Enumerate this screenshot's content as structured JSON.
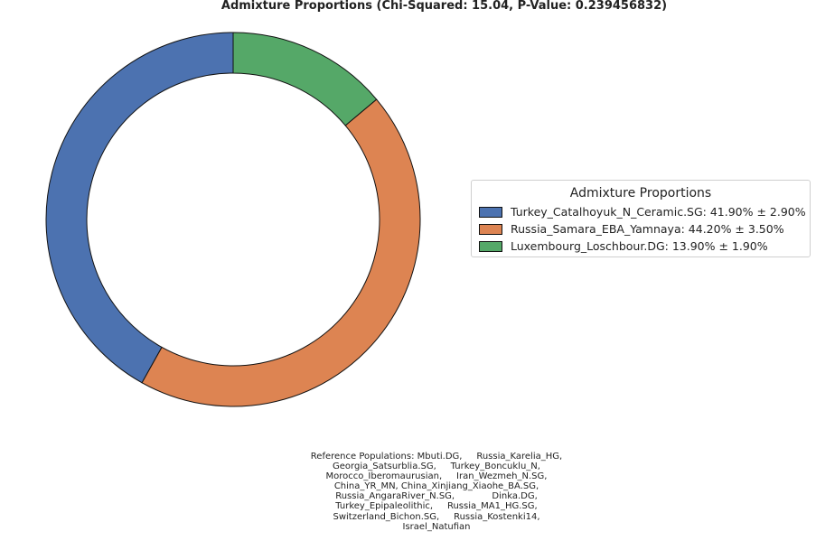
{
  "chart_data": {
    "type": "pie",
    "title": "Admixture Proportions (Chi-Squared: 15.04, P-Value: 0.239456832)",
    "legend_title": "Admixture Proportions",
    "legend_placement": "right",
    "categories": [
      "Turkey_Catalhoyuk_N_Ceramic.SG",
      "Russia_Samara_EBA_Yamnaya",
      "Luxembourg_Loschbour.DG"
    ],
    "values": [
      41.9,
      44.2,
      13.9
    ],
    "legend_labels": [
      "Turkey_Catalhoyuk_N_Ceramic.SG: 41.90% ± 2.90%",
      "Russia_Samara_EBA_Yamnaya: 44.20% ± 3.50%",
      "Luxembourg_Loschbour.DG: 13.90% ± 1.90%"
    ],
    "colors": [
      "#4c72b0",
      "#dd8452",
      "#55a868"
    ],
    "footnote_lines": [
      "Reference Populations: Mbuti.DG,     Russia_Karelia_HG,",
      "Georgia_Satsurblia.SG,     Turkey_Boncuklu_N,",
      "Morocco_Iberomaurusian,     Iran_Wezmeh_N.SG,",
      "China_YR_MN, China_Xinjiang_Xiaohe_BA.SG,",
      "Russia_AngaraRiver_N.SG,             Dinka.DG,",
      "Turkey_Epipaleolithic,     Russia_MA1_HG.SG,",
      "Switzerland_Bichon.SG,     Russia_Kostenki14,",
      "Israel_Natufian"
    ]
  }
}
